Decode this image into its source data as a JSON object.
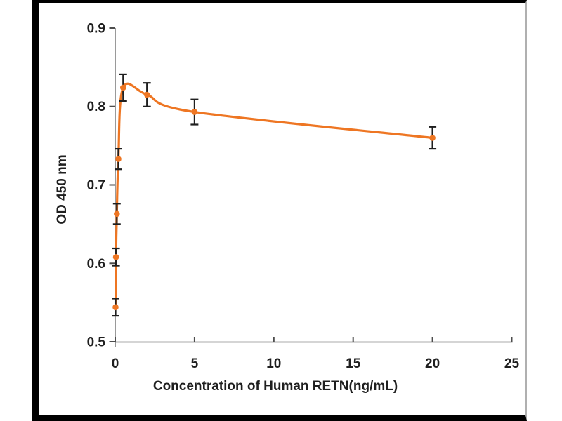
{
  "figure": {
    "background": "#ffffff",
    "frame_border_color": "#000000",
    "frame_right_border_color": "#b0b0b0"
  },
  "chart_data": {
    "type": "line",
    "title": "",
    "xlabel": "Concentration of Human RETN(ng/mL)",
    "ylabel": "OD 450 nm",
    "xlim": [
      0,
      25
    ],
    "ylim": [
      0.5,
      0.9
    ],
    "x_tick_values": [
      0,
      5,
      10,
      15,
      20,
      25
    ],
    "x_tick_labels": [
      "0",
      "5",
      "10",
      "15",
      "20",
      "25"
    ],
    "y_tick_values": [
      0.5,
      0.6,
      0.7,
      0.8,
      0.9
    ],
    "y_tick_labels": [
      "0.5",
      "0.6",
      "0.7",
      "0.8",
      "0.9"
    ],
    "grid": false,
    "legend_shown": false,
    "axis_line_color": "#8f8f8f",
    "tick_color": "#4d4d4d",
    "label_color": "#1f1f1f",
    "series": [
      {
        "marker": "circle",
        "line_color": "#EE7623",
        "marker_color": "#EE7623",
        "error_bar_color": "#1f1f1f",
        "x": [
          0.02,
          0.05,
          0.1,
          0.2,
          0.5,
          2,
          5,
          20
        ],
        "y": [
          0.544,
          0.608,
          0.663,
          0.733,
          0.824,
          0.815,
          0.793,
          0.76
        ],
        "yerr": [
          0.011,
          0.011,
          0.013,
          0.013,
          0.017,
          0.015,
          0.016,
          0.014
        ]
      }
    ]
  }
}
